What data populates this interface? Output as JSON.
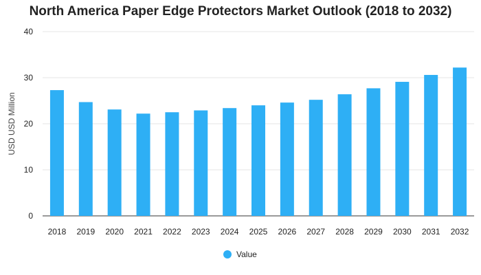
{
  "chart_data": {
    "type": "bar",
    "title": "North America Paper Edge Protectors Market Outlook (2018 to 2032)",
    "xlabel": "",
    "ylabel": "USD USD Million",
    "categories": [
      "2018",
      "2019",
      "2020",
      "2021",
      "2022",
      "2023",
      "2024",
      "2025",
      "2026",
      "2027",
      "2028",
      "2029",
      "2030",
      "2031",
      "2032"
    ],
    "series": [
      {
        "name": "Value",
        "color": "#2EAFF5",
        "values": [
          27.3,
          24.7,
          23.1,
          22.2,
          22.5,
          22.9,
          23.4,
          24.0,
          24.6,
          25.2,
          26.4,
          27.7,
          29.1,
          30.6,
          32.2
        ]
      }
    ],
    "ylim": [
      0,
      40
    ],
    "yticks": [
      "0",
      "10",
      "20",
      "30",
      "40"
    ],
    "grid": true,
    "legend_position": "bottom-center"
  }
}
